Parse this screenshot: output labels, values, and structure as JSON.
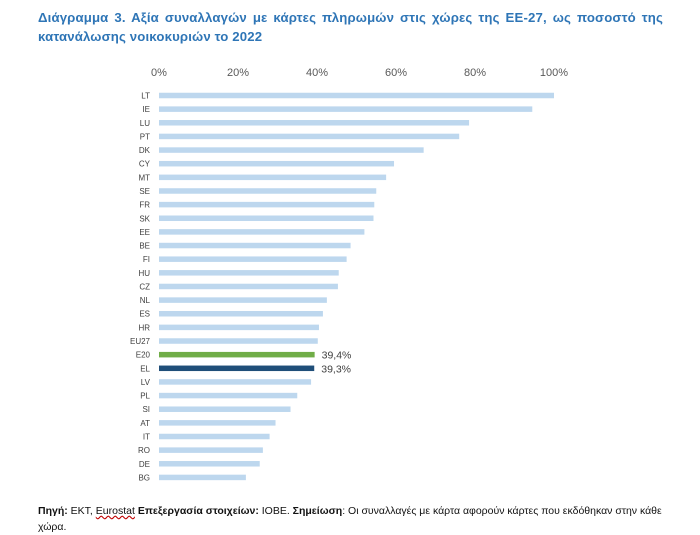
{
  "title": "Διάγραμμα 3. Αξία συναλλαγών με κάρτες πληρωμών στις χώρες της ΕΕ-27, ως ποσοστό της κατανάλωσης νοικοκυριών το 2022",
  "chart_data": {
    "type": "bar",
    "orientation": "horizontal",
    "categories": [
      "LT",
      "IE",
      "LU",
      "PT",
      "DK",
      "CY",
      "MT",
      "SE",
      "FR",
      "SK",
      "EE",
      "BE",
      "FI",
      "HU",
      "CZ",
      "NL",
      "ES",
      "HR",
      "EU27",
      "E20",
      "EL",
      "LV",
      "PL",
      "SI",
      "AT",
      "IT",
      "RO",
      "DE",
      "BG"
    ],
    "values": [
      100.0,
      94.5,
      78.5,
      76.0,
      67.0,
      59.5,
      57.5,
      55.0,
      54.5,
      54.3,
      52.0,
      48.5,
      47.5,
      45.5,
      45.3,
      42.5,
      41.5,
      40.5,
      40.2,
      39.4,
      39.3,
      38.5,
      35.0,
      33.3,
      29.5,
      28.0,
      26.3,
      25.5,
      22.0
    ],
    "xlim": [
      0,
      100
    ],
    "xticks": [
      "0%",
      "20%",
      "40%",
      "60%",
      "80%",
      "100%"
    ],
    "xtick_values": [
      0,
      20,
      40,
      60,
      80,
      100
    ],
    "axis_position": "top",
    "grid": false,
    "default_color": "#BDD7EE",
    "highlights": [
      {
        "category": "E20",
        "color": "#70AD47",
        "label": "39,4%"
      },
      {
        "category": "EL",
        "color": "#1F4E79",
        "label": "39,3%"
      }
    ]
  },
  "footer": {
    "source_label": "Πηγή:",
    "source_text": " ΕΚΤ, ",
    "eurostat": "Eurostat",
    "processing_label": "Επεξεργασία στοιχείων:",
    "processing_text": " ΙΟΒΕ. ",
    "note_label": "Σημείωση",
    "note_text": ": Οι συναλλαγές με κάρτα αφορούν κάρτες που εκδόθηκαν στην κάθε χώρα."
  }
}
